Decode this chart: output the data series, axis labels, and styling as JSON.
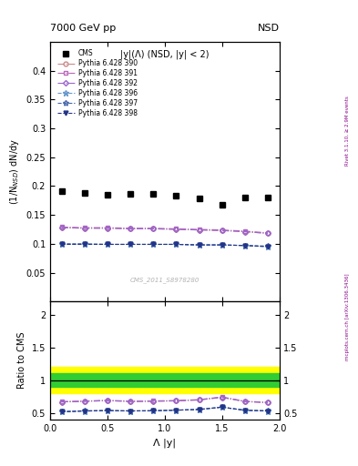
{
  "title_left": "7000 GeV pp",
  "title_right": "NSD",
  "ylabel_main": "(1/N$_{NSD}$) dN/dy",
  "ylabel_ratio": "Ratio to CMS",
  "xlabel": "Λ |y|",
  "inner_label": "|y|(Λ) (NSD, |y| < 2)",
  "watermark": "CMS_2011_S8978280",
  "right_label_top": "Rivet 3.1.10, ≥ 2.9M events",
  "right_label_bot": "mcplots.cern.ch [arXiv:1306.3436]",
  "cms_x": [
    0.1,
    0.3,
    0.5,
    0.7,
    0.9,
    1.1,
    1.3,
    1.5,
    1.7,
    1.9
  ],
  "cms_y": [
    0.192,
    0.188,
    0.185,
    0.187,
    0.186,
    0.183,
    0.178,
    0.167,
    0.18,
    0.18
  ],
  "p390_x": [
    0.1,
    0.3,
    0.5,
    0.7,
    0.9,
    1.1,
    1.3,
    1.5,
    1.7,
    1.9
  ],
  "p390_y": [
    0.128,
    0.127,
    0.127,
    0.126,
    0.126,
    0.125,
    0.124,
    0.123,
    0.121,
    0.118
  ],
  "p391_x": [
    0.1,
    0.3,
    0.5,
    0.7,
    0.9,
    1.1,
    1.3,
    1.5,
    1.7,
    1.9
  ],
  "p391_y": [
    0.129,
    0.128,
    0.128,
    0.127,
    0.127,
    0.126,
    0.125,
    0.124,
    0.122,
    0.119
  ],
  "p392_x": [
    0.1,
    0.3,
    0.5,
    0.7,
    0.9,
    1.1,
    1.3,
    1.5,
    1.7,
    1.9
  ],
  "p392_y": [
    0.128,
    0.127,
    0.127,
    0.126,
    0.126,
    0.125,
    0.124,
    0.123,
    0.121,
    0.118
  ],
  "p396_x": [
    0.1,
    0.3,
    0.5,
    0.7,
    0.9,
    1.1,
    1.3,
    1.5,
    1.7,
    1.9
  ],
  "p396_y": [
    0.099,
    0.099,
    0.099,
    0.099,
    0.099,
    0.099,
    0.098,
    0.098,
    0.097,
    0.095
  ],
  "p397_x": [
    0.1,
    0.3,
    0.5,
    0.7,
    0.9,
    1.1,
    1.3,
    1.5,
    1.7,
    1.9
  ],
  "p397_y": [
    0.1,
    0.1,
    0.099,
    0.099,
    0.099,
    0.099,
    0.098,
    0.098,
    0.097,
    0.096
  ],
  "p398_x": [
    0.1,
    0.3,
    0.5,
    0.7,
    0.9,
    1.1,
    1.3,
    1.5,
    1.7,
    1.9
  ],
  "p398_y": [
    0.099,
    0.099,
    0.099,
    0.099,
    0.099,
    0.099,
    0.098,
    0.098,
    0.097,
    0.095
  ],
  "ratio_p390_y": [
    0.667,
    0.676,
    0.686,
    0.674,
    0.677,
    0.683,
    0.697,
    0.737,
    0.672,
    0.656
  ],
  "ratio_p391_y": [
    0.672,
    0.681,
    0.692,
    0.679,
    0.683,
    0.688,
    0.702,
    0.743,
    0.678,
    0.661
  ],
  "ratio_p392_y": [
    0.667,
    0.676,
    0.686,
    0.674,
    0.677,
    0.683,
    0.697,
    0.737,
    0.672,
    0.656
  ],
  "ratio_p396_y": [
    0.516,
    0.527,
    0.535,
    0.529,
    0.532,
    0.541,
    0.551,
    0.587,
    0.539,
    0.528
  ],
  "ratio_p397_y": [
    0.521,
    0.532,
    0.535,
    0.529,
    0.532,
    0.541,
    0.551,
    0.587,
    0.539,
    0.533
  ],
  "ratio_p398_y": [
    0.516,
    0.527,
    0.535,
    0.529,
    0.532,
    0.541,
    0.551,
    0.587,
    0.539,
    0.528
  ],
  "color_390": "#cc8888",
  "color_391": "#bb66bb",
  "color_392": "#9966cc",
  "color_396": "#6699cc",
  "color_397": "#4466aa",
  "color_398": "#223388",
  "ylim_main": [
    0.0,
    0.45
  ],
  "ylim_ratio": [
    0.4,
    2.2
  ],
  "band_green_low": 0.9,
  "band_green_high": 1.1,
  "band_yellow_low": 0.8,
  "band_yellow_high": 1.2
}
